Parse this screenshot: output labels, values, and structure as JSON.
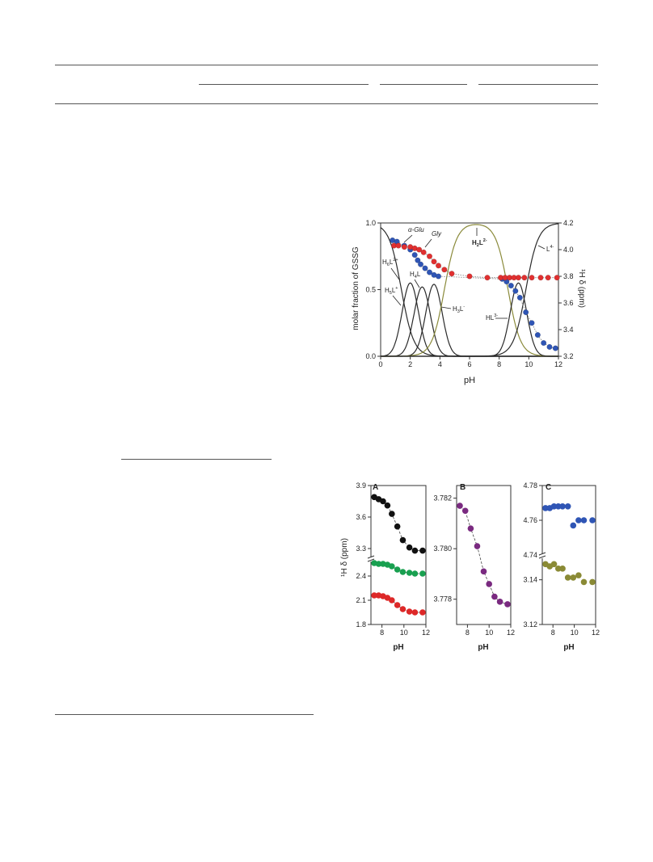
{
  "chart_data": [
    {
      "type": "line",
      "title": "",
      "xlabel": "pH",
      "ylabel_left": "molar fraction of GSSG",
      "ylabel_right": "¹H δ (ppm)",
      "xlim": [
        0,
        12
      ],
      "ylim_left": [
        0,
        1.0
      ],
      "ylim_right": [
        3.2,
        4.2
      ],
      "x_ticks": [
        "0",
        "2",
        "4",
        "6",
        "8",
        "10",
        "12"
      ],
      "y_left_ticks": [
        "0.0",
        "0.5",
        "1.0"
      ],
      "y_right_ticks": [
        "3.2",
        "3.4",
        "3.6",
        "3.8",
        "4.0",
        "4.2"
      ],
      "grid": false,
      "species_peaks": [
        {
          "name": "H6L2+",
          "type": "decreasing",
          "mid": 1.4,
          "color": "#2a2a2a"
        },
        {
          "name": "H5L+",
          "peak": 2.0,
          "height": 0.55,
          "color": "#2a2a2a"
        },
        {
          "name": "H4L",
          "peak": 2.8,
          "height": 0.52,
          "color": "#2a2a2a"
        },
        {
          "name": "H3L-",
          "peak": 3.6,
          "height": 0.54,
          "color": "#2a2a2a"
        },
        {
          "name": "H2L2-",
          "peak": 6.5,
          "height": 1.0,
          "color": "#8a8a3a"
        },
        {
          "name": "HL3-",
          "peak": 9.3,
          "height": 0.55,
          "color": "#2a2a2a"
        },
        {
          "name": "L4-",
          "type": "increasing",
          "mid": 9.8,
          "color": "#2a2a2a"
        }
      ],
      "labels": {
        "alpha_glu": "α-Glu",
        "gly": "Gly",
        "h6l": "H",
        "h6l_sub": "6",
        "h6l_sup": "2+",
        "h6l_base": "L",
        "h5l": "H",
        "h5l_sub": "5",
        "h5l_sup": "+",
        "h5l_base": "L",
        "h4l": "H",
        "h4l_sub": "4",
        "h4l_base": "L",
        "h3l": "H",
        "h3l_sub": "3",
        "h3l_sup": "-",
        "h3l_base": "L",
        "h2l": "H",
        "h2l_sub": "2",
        "h2l_sup": "2-",
        "h2l_base": "L",
        "hl": "HL",
        "hl_sup": "3-",
        "l4": "L",
        "l4_sup": "4-"
      },
      "series": [
        {
          "name": "α-Glu",
          "color": "#2f55b5",
          "x": [
            0.8,
            1.1,
            1.6,
            2.0,
            2.3,
            2.5,
            2.7,
            3.0,
            3.3,
            3.6,
            3.9,
            8.2,
            8.5,
            8.8,
            9.1,
            9.4,
            9.8,
            10.2,
            10.6,
            11.0,
            11.4,
            11.8
          ],
          "y": [
            4.07,
            4.06,
            4.03,
            4.0,
            3.96,
            3.92,
            3.89,
            3.86,
            3.83,
            3.81,
            3.8,
            3.78,
            3.76,
            3.73,
            3.69,
            3.64,
            3.53,
            3.45,
            3.36,
            3.3,
            3.27,
            3.26
          ]
        },
        {
          "name": "Gly",
          "color": "#e03030",
          "x": [
            0.9,
            1.2,
            1.6,
            2.0,
            2.3,
            2.6,
            2.9,
            3.3,
            3.6,
            3.9,
            4.3,
            4.8,
            6.0,
            7.2,
            8.1,
            8.4,
            8.7,
            9.0,
            9.3,
            9.7,
            10.2,
            10.8,
            11.3,
            11.9
          ],
          "y": [
            4.03,
            4.03,
            4.02,
            4.02,
            4.01,
            4.0,
            3.98,
            3.95,
            3.91,
            3.88,
            3.85,
            3.82,
            3.8,
            3.79,
            3.79,
            3.79,
            3.79,
            3.79,
            3.79,
            3.79,
            3.79,
            3.79,
            3.79,
            3.79
          ]
        }
      ]
    },
    {
      "type": "scatter",
      "panel": "A",
      "xlabel": "pH",
      "ylabel": "¹H δ (ppm)",
      "xlim": [
        7,
        12
      ],
      "x_ticks": [
        "8",
        "10",
        "12"
      ],
      "y_ticks_upper": [
        "3.9",
        "3.6",
        "3.3"
      ],
      "y_ticks_lower": [
        "2.4",
        "2.1",
        "1.8"
      ],
      "broken_axis": true,
      "series": [
        {
          "name": "",
          "color": "#111111",
          "x": [
            7.3,
            7.7,
            8.1,
            8.5,
            8.9,
            9.4,
            9.9,
            10.5,
            11.0,
            11.7
          ],
          "y": [
            3.79,
            3.77,
            3.75,
            3.71,
            3.63,
            3.51,
            3.38,
            3.31,
            3.28,
            3.28
          ]
        },
        {
          "name": "",
          "color": "#19a050",
          "x": [
            7.3,
            7.7,
            8.1,
            8.5,
            8.9,
            9.4,
            9.9,
            10.5,
            11.0,
            11.7
          ],
          "y": [
            2.56,
            2.55,
            2.55,
            2.54,
            2.52,
            2.48,
            2.45,
            2.44,
            2.43,
            2.43
          ]
        },
        {
          "name": "",
          "color": "#dd2828",
          "x": [
            7.3,
            7.7,
            8.1,
            8.5,
            8.9,
            9.4,
            9.9,
            10.5,
            11.0,
            11.7
          ],
          "y": [
            2.16,
            2.16,
            2.15,
            2.13,
            2.1,
            2.04,
            1.99,
            1.96,
            1.95,
            1.95
          ]
        }
      ]
    },
    {
      "type": "scatter",
      "panel": "B",
      "xlabel": "pH",
      "xlim": [
        7,
        12
      ],
      "ylim": [
        3.777,
        3.7825
      ],
      "x_ticks": [
        "8",
        "10",
        "12"
      ],
      "y_ticks": [
        "3.782",
        "3.780",
        "3.778"
      ],
      "series": [
        {
          "name": "",
          "color": "#7a2a80",
          "x": [
            7.3,
            7.8,
            8.3,
            8.9,
            9.5,
            10.0,
            10.5,
            11.0,
            11.7
          ],
          "y": [
            3.7817,
            3.7815,
            3.7808,
            3.7801,
            3.7791,
            3.7786,
            3.7781,
            3.7779,
            3.7778
          ]
        }
      ]
    },
    {
      "type": "scatter",
      "panel": "C",
      "xlabel": "pH",
      "xlim": [
        7,
        12
      ],
      "x_ticks": [
        "8",
        "10",
        "12"
      ],
      "y_ticks_upper": [
        "4.78",
        "4.76",
        "4.74"
      ],
      "y_ticks_lower": [
        "3.14",
        "3.12"
      ],
      "broken_axis": true,
      "series": [
        {
          "name": "",
          "color": "#2f55b5",
          "x": [
            7.3,
            7.7,
            8.1,
            8.5,
            8.9,
            9.4,
            9.9,
            10.4,
            10.9,
            11.7
          ],
          "y": [
            4.767,
            4.767,
            4.768,
            4.768,
            4.768,
            4.768,
            4.757,
            4.76,
            4.76,
            4.76
          ]
        },
        {
          "name": "",
          "color": "#8a8a35",
          "x": [
            7.3,
            7.7,
            8.1,
            8.5,
            8.9,
            9.4,
            9.9,
            10.4,
            10.9,
            11.7
          ],
          "y": [
            3.147,
            3.146,
            3.147,
            3.145,
            3.145,
            3.141,
            3.141,
            3.142,
            3.139,
            3.139
          ]
        }
      ]
    }
  ]
}
